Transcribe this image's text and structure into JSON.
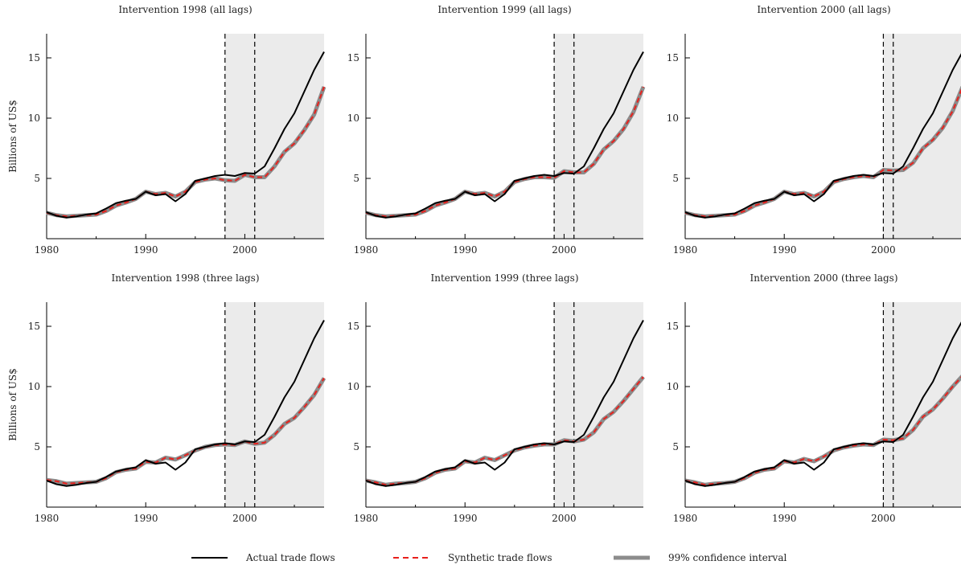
{
  "chart_data": {
    "type": "line",
    "ylabel": "Billions of US$",
    "xlim": [
      1980,
      2008
    ],
    "ylim": [
      0,
      17
    ],
    "xticks": [
      1980,
      1990,
      2000
    ],
    "yticks": [
      5,
      10,
      15
    ],
    "grid": false,
    "legend_position": "bottom-center",
    "legend": {
      "actual": "Actual trade flows",
      "synthetic": "Synthetic trade flows",
      "ci": "99% confidence interval"
    },
    "colors": {
      "actual": "#000000",
      "synthetic": "#e8201c",
      "ci": "#8c8c8c",
      "shade": "#ebebeb"
    },
    "x": [
      1980,
      1981,
      1982,
      1983,
      1984,
      1985,
      1986,
      1987,
      1988,
      1989,
      1990,
      1991,
      1992,
      1993,
      1994,
      1995,
      1996,
      1997,
      1998,
      1999,
      2000,
      2001,
      2002,
      2003,
      2004,
      2005,
      2006,
      2007,
      2008
    ],
    "actual": [
      2.2,
      1.9,
      1.75,
      1.85,
      2.0,
      2.1,
      2.5,
      2.95,
      3.15,
      3.3,
      3.9,
      3.6,
      3.7,
      3.1,
      3.7,
      4.8,
      5.0,
      5.2,
      5.3,
      5.2,
      5.45,
      5.4,
      6.0,
      7.5,
      9.1,
      10.4,
      12.2,
      14.0,
      15.5
    ],
    "panels": [
      {
        "title": "Intervention 1998 (all lags)",
        "show_ylabel": true,
        "vlines": [
          1998,
          2001
        ],
        "shade_start": 1998,
        "synthetic": [
          2.15,
          1.95,
          1.85,
          1.9,
          1.95,
          2.0,
          2.3,
          2.75,
          3.0,
          3.3,
          3.9,
          3.7,
          3.8,
          3.5,
          3.9,
          4.7,
          4.9,
          5.0,
          4.85,
          4.8,
          5.3,
          5.1,
          5.1,
          6.0,
          7.2,
          7.9,
          9.0,
          10.3,
          12.6
        ]
      },
      {
        "title": "Intervention 1999 (all lags)",
        "show_ylabel": false,
        "vlines": [
          1999,
          2001
        ],
        "shade_start": 1999,
        "synthetic": [
          2.15,
          1.95,
          1.85,
          1.9,
          1.95,
          2.0,
          2.3,
          2.75,
          3.0,
          3.3,
          3.9,
          3.7,
          3.8,
          3.5,
          3.9,
          4.7,
          4.95,
          5.1,
          5.1,
          5.05,
          5.6,
          5.5,
          5.5,
          6.2,
          7.4,
          8.1,
          9.1,
          10.5,
          12.6
        ]
      },
      {
        "title": "Intervention 2000 (all lags)",
        "show_ylabel": false,
        "vlines": [
          2000,
          2001
        ],
        "shade_start": 2000,
        "synthetic": [
          2.15,
          1.95,
          1.85,
          1.9,
          1.95,
          2.0,
          2.3,
          2.75,
          3.0,
          3.3,
          3.9,
          3.7,
          3.8,
          3.5,
          3.9,
          4.7,
          4.95,
          5.1,
          5.2,
          5.1,
          5.7,
          5.65,
          5.7,
          6.3,
          7.5,
          8.2,
          9.2,
          10.6,
          12.6
        ]
      },
      {
        "title": "Intervention 1998 (three lags)",
        "show_ylabel": true,
        "vlines": [
          1998,
          2001
        ],
        "shade_start": 1998,
        "synthetic": [
          2.25,
          2.15,
          1.95,
          2.0,
          2.05,
          2.1,
          2.4,
          2.9,
          3.1,
          3.2,
          3.75,
          3.7,
          4.1,
          3.95,
          4.3,
          4.7,
          5.0,
          5.15,
          5.2,
          5.15,
          5.45,
          5.25,
          5.35,
          6.0,
          6.9,
          7.4,
          8.3,
          9.3,
          10.7
        ]
      },
      {
        "title": "Intervention 1999 (three lags)",
        "show_ylabel": false,
        "vlines": [
          1999,
          2001
        ],
        "shade_start": 1999,
        "synthetic": [
          2.2,
          2.05,
          1.85,
          1.95,
          2.0,
          2.1,
          2.4,
          2.85,
          3.1,
          3.2,
          3.8,
          3.7,
          4.1,
          3.9,
          4.3,
          4.7,
          4.95,
          5.1,
          5.2,
          5.2,
          5.55,
          5.45,
          5.6,
          6.2,
          7.3,
          7.9,
          8.8,
          9.8,
          10.8
        ]
      },
      {
        "title": "Intervention 2000 (three lags)",
        "show_ylabel": false,
        "vlines": [
          2000,
          2001
        ],
        "shade_start": 2000,
        "synthetic": [
          2.2,
          2.05,
          1.85,
          1.95,
          2.0,
          2.1,
          2.4,
          2.85,
          3.1,
          3.2,
          3.8,
          3.7,
          4.0,
          3.8,
          4.2,
          4.7,
          4.95,
          5.1,
          5.2,
          5.15,
          5.6,
          5.55,
          5.7,
          6.4,
          7.5,
          8.1,
          9.0,
          10.0,
          10.9
        ]
      }
    ]
  }
}
